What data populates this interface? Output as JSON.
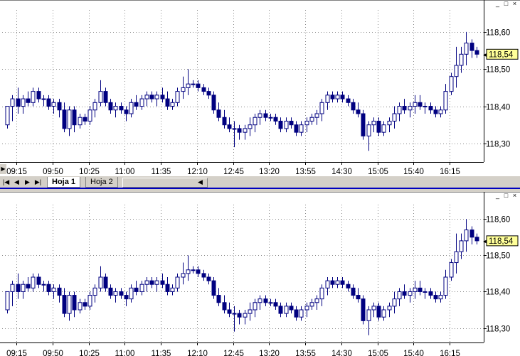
{
  "window_buttons": [
    "_",
    "□",
    "×"
  ],
  "tabs": [
    {
      "label": "Hoja 1",
      "active": true
    },
    {
      "label": "Hoja 2",
      "active": false
    }
  ],
  "nav_buttons": [
    "|◀",
    "◀",
    "▶",
    "▶|"
  ],
  "chart_data": [
    {
      "type": "candlestick",
      "x_tick_labels": [
        "09:15",
        "09:50",
        "10:25",
        "11:00",
        "11:35",
        "12:10",
        "12:45",
        "13:20",
        "13:55",
        "14:30",
        "15:05",
        "15:40",
        "16:15"
      ],
      "y_tick_labels": [
        "118,60",
        "118,50",
        "118,40",
        "118,30"
      ],
      "y_ticks": [
        118.6,
        118.5,
        118.4,
        118.3
      ],
      "ylim": [
        118.25,
        118.64
      ],
      "last_price_label": "118,54",
      "last_price": 118.54,
      "grid": true,
      "candles": [
        [
          118.35,
          118.4,
          118.34,
          118.4
        ],
        [
          118.4,
          118.43,
          118.36,
          118.42
        ],
        [
          118.42,
          118.45,
          118.38,
          118.4
        ],
        [
          118.4,
          118.43,
          118.38,
          118.42
        ],
        [
          118.42,
          118.44,
          118.4,
          118.41
        ],
        [
          118.41,
          118.45,
          118.4,
          118.44
        ],
        [
          118.44,
          118.45,
          118.41,
          118.42
        ],
        [
          118.42,
          118.43,
          118.4,
          118.42
        ],
        [
          118.42,
          118.43,
          118.39,
          118.4
        ],
        [
          118.4,
          118.42,
          118.38,
          118.41
        ],
        [
          118.41,
          118.42,
          118.37,
          118.39
        ],
        [
          118.39,
          118.41,
          118.33,
          118.34
        ],
        [
          118.34,
          118.4,
          118.32,
          118.39
        ],
        [
          118.39,
          118.4,
          118.33,
          118.35
        ],
        [
          118.35,
          118.38,
          118.34,
          118.37
        ],
        [
          118.37,
          118.38,
          118.35,
          118.36
        ],
        [
          118.36,
          118.4,
          118.35,
          118.39
        ],
        [
          118.39,
          118.42,
          118.37,
          118.41
        ],
        [
          118.41,
          118.47,
          118.4,
          118.44
        ],
        [
          118.44,
          118.45,
          118.4,
          118.41
        ],
        [
          118.41,
          118.42,
          118.38,
          118.39
        ],
        [
          118.39,
          118.41,
          118.37,
          118.4
        ],
        [
          118.4,
          118.41,
          118.38,
          118.39
        ],
        [
          118.39,
          118.4,
          118.36,
          118.38
        ],
        [
          118.38,
          118.42,
          118.37,
          118.41
        ],
        [
          118.41,
          118.43,
          118.39,
          118.4
        ],
        [
          118.4,
          118.43,
          118.39,
          118.42
        ],
        [
          118.42,
          118.44,
          118.4,
          118.43
        ],
        [
          118.43,
          118.44,
          118.41,
          118.42
        ],
        [
          118.42,
          118.44,
          118.4,
          118.43
        ],
        [
          118.43,
          118.45,
          118.41,
          118.42
        ],
        [
          118.42,
          118.44,
          118.39,
          118.4
        ],
        [
          118.4,
          118.42,
          118.39,
          118.41
        ],
        [
          118.41,
          118.45,
          118.4,
          118.44
        ],
        [
          118.44,
          118.48,
          118.42,
          118.45
        ],
        [
          118.45,
          118.5,
          118.43,
          118.46
        ],
        [
          118.46,
          118.47,
          118.45,
          118.46
        ],
        [
          118.46,
          118.47,
          118.44,
          118.45
        ],
        [
          118.45,
          118.46,
          118.43,
          118.44
        ],
        [
          118.44,
          118.45,
          118.42,
          118.43
        ],
        [
          118.43,
          118.44,
          118.38,
          118.39
        ],
        [
          118.39,
          118.41,
          118.36,
          118.37
        ],
        [
          118.37,
          118.39,
          118.34,
          118.35
        ],
        [
          118.35,
          118.37,
          118.33,
          118.34
        ],
        [
          118.34,
          118.36,
          118.29,
          118.34
        ],
        [
          118.34,
          118.35,
          118.31,
          118.33
        ],
        [
          118.33,
          118.35,
          118.31,
          118.34
        ],
        [
          118.34,
          118.37,
          118.32,
          118.35
        ],
        [
          118.35,
          118.38,
          118.33,
          118.37
        ],
        [
          118.37,
          118.39,
          118.35,
          118.38
        ],
        [
          118.38,
          118.39,
          118.36,
          118.37
        ],
        [
          118.37,
          118.38,
          118.36,
          118.37
        ],
        [
          118.37,
          118.38,
          118.35,
          118.36
        ],
        [
          118.36,
          118.37,
          118.33,
          118.34
        ],
        [
          118.34,
          118.37,
          118.33,
          118.36
        ],
        [
          118.36,
          118.37,
          118.34,
          118.35
        ],
        [
          118.35,
          118.36,
          118.32,
          118.33
        ],
        [
          118.33,
          118.36,
          118.32,
          118.35
        ],
        [
          118.35,
          118.37,
          118.33,
          118.36
        ],
        [
          118.36,
          118.38,
          118.35,
          118.37
        ],
        [
          118.37,
          118.39,
          118.35,
          118.38
        ],
        [
          118.38,
          118.42,
          118.36,
          118.41
        ],
        [
          118.41,
          118.44,
          118.39,
          118.43
        ],
        [
          118.43,
          118.44,
          118.41,
          118.42
        ],
        [
          118.42,
          118.44,
          118.41,
          118.43
        ],
        [
          118.43,
          118.44,
          118.41,
          118.42
        ],
        [
          118.42,
          118.43,
          118.4,
          118.41
        ],
        [
          118.41,
          118.42,
          118.38,
          118.39
        ],
        [
          118.39,
          118.41,
          118.37,
          118.38
        ],
        [
          118.38,
          118.39,
          118.31,
          118.32
        ],
        [
          118.32,
          118.36,
          118.28,
          118.35
        ],
        [
          118.35,
          118.37,
          118.33,
          118.36
        ],
        [
          118.36,
          118.37,
          118.32,
          118.33
        ],
        [
          118.33,
          118.36,
          118.32,
          118.35
        ],
        [
          118.35,
          118.37,
          118.33,
          118.36
        ],
        [
          118.36,
          118.4,
          118.34,
          118.38
        ],
        [
          118.38,
          118.41,
          118.36,
          118.4
        ],
        [
          118.4,
          118.42,
          118.38,
          118.39
        ],
        [
          118.39,
          118.41,
          118.37,
          118.4
        ],
        [
          118.4,
          118.43,
          118.38,
          118.41
        ],
        [
          118.41,
          118.43,
          118.39,
          118.4
        ],
        [
          118.4,
          118.41,
          118.38,
          118.4
        ],
        [
          118.4,
          118.41,
          118.38,
          118.39
        ],
        [
          118.39,
          118.4,
          118.37,
          118.38
        ],
        [
          118.38,
          118.4,
          118.37,
          118.39
        ],
        [
          118.39,
          118.46,
          118.38,
          118.44
        ],
        [
          118.44,
          118.49,
          118.43,
          118.48
        ],
        [
          118.48,
          118.56,
          118.45,
          118.51
        ],
        [
          118.51,
          118.56,
          118.49,
          118.54
        ],
        [
          118.54,
          118.6,
          118.51,
          118.57
        ],
        [
          118.57,
          118.58,
          118.53,
          118.55
        ],
        [
          118.55,
          118.56,
          118.53,
          118.54
        ]
      ]
    },
    {
      "type": "candlestick",
      "x_tick_labels": [
        "09:15",
        "09:50",
        "10:25",
        "11:00",
        "11:35",
        "12:10",
        "12:45",
        "13:20",
        "13:55",
        "14:30",
        "15:05",
        "15:40",
        "16:15"
      ],
      "y_tick_labels": [
        "118,60",
        "118,50",
        "118,40",
        "118,30"
      ],
      "y_ticks": [
        118.6,
        118.5,
        118.4,
        118.3
      ],
      "ylim": [
        118.26,
        118.62
      ],
      "last_price_label": "118,54",
      "last_price": 118.54,
      "grid": true
    }
  ]
}
